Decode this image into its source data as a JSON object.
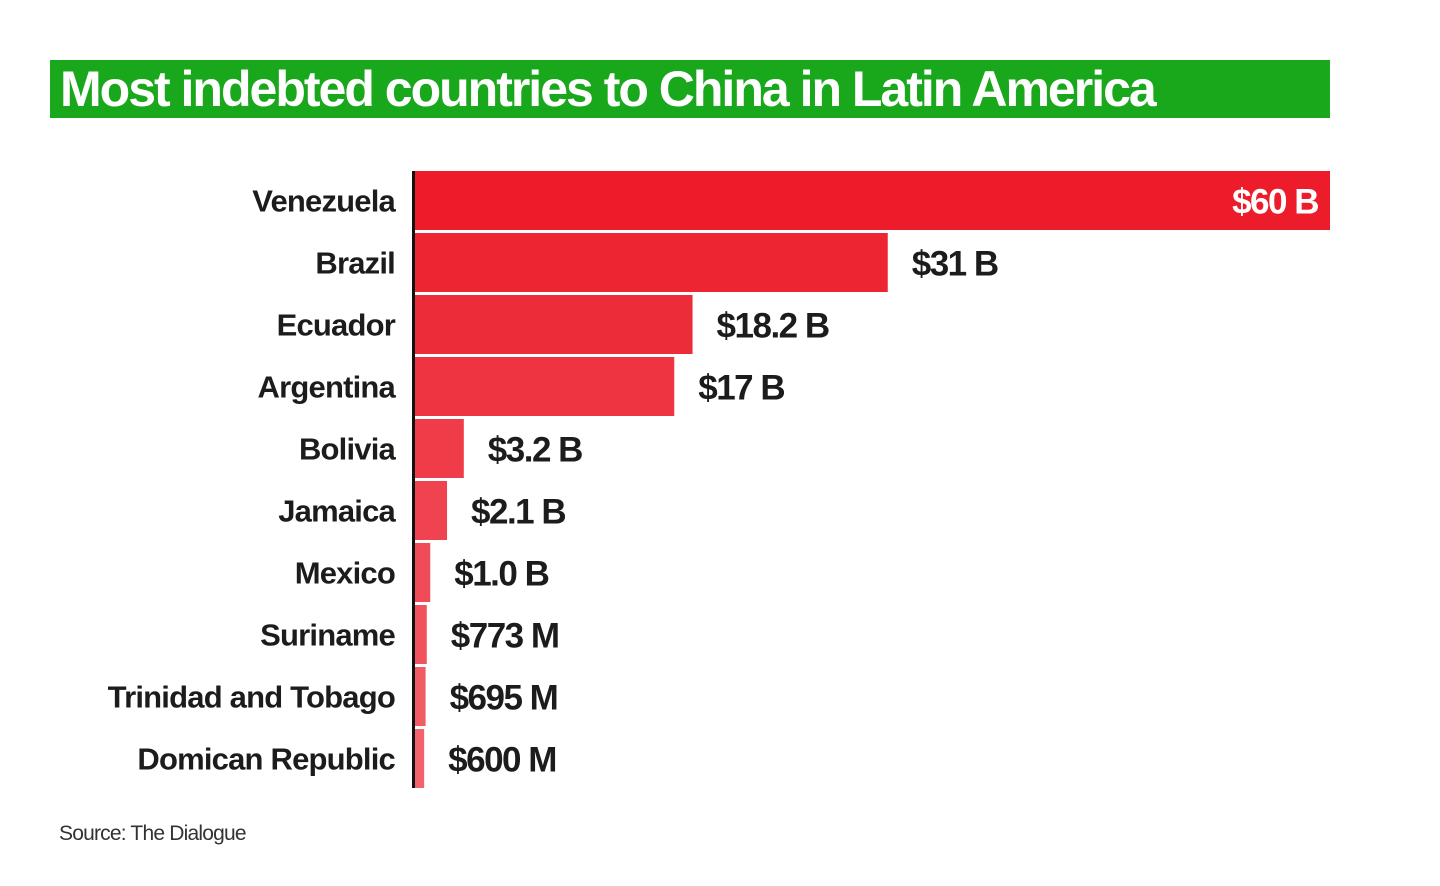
{
  "title": "Most indebted countries to China in Latin America",
  "source": "Source: The Dialogue",
  "colors": {
    "title_background": "#19a81b",
    "title_text": "#ffffff",
    "bar": "#ec1c2a",
    "text": "#1c1c1c"
  },
  "chart_data": {
    "type": "bar",
    "orientation": "horizontal",
    "title": "Most indebted countries to China in Latin America",
    "categories": [
      "Venezuela",
      "Brazil",
      "Ecuador",
      "Argentina",
      "Bolivia",
      "Jamaica",
      "Mexico",
      "Suriname",
      "Trinidad and Tobago",
      "Domican Republic"
    ],
    "values": [
      60,
      31,
      18.2,
      17,
      3.2,
      2.1,
      1.0,
      0.773,
      0.695,
      0.6
    ],
    "unit": "billion USD",
    "value_labels": [
      "$60 B",
      "$31 B",
      "$18.2 B",
      "$17 B",
      "$3.2 B",
      "$2.1 B",
      "$1.0 B",
      "$773 M",
      "$695 M",
      "$600 M"
    ],
    "xlim": [
      0,
      60
    ],
    "grid": false,
    "legend": "none"
  }
}
